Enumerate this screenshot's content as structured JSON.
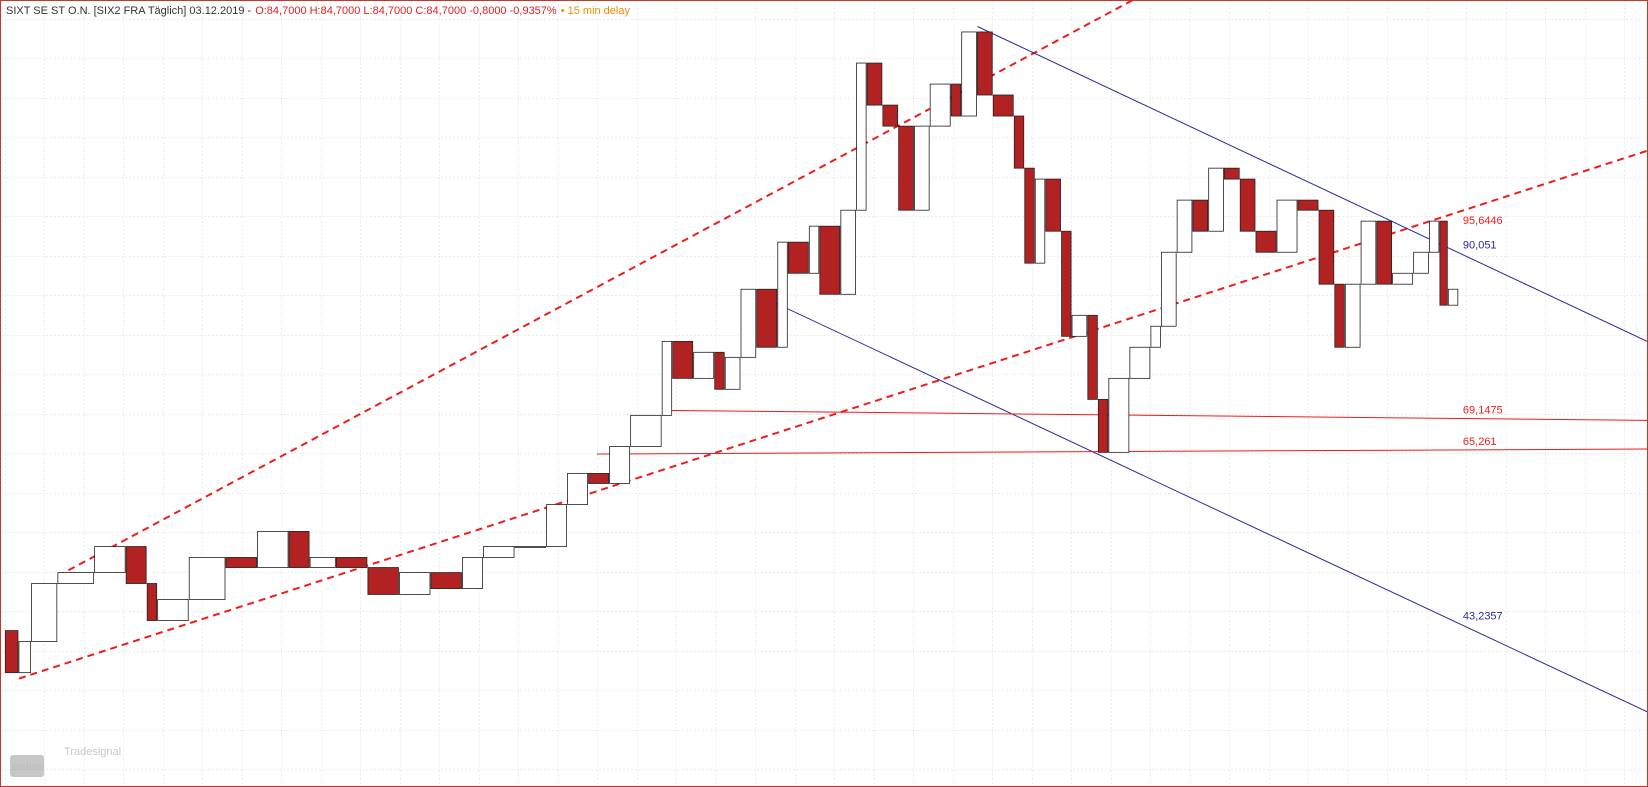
{
  "chart_data": {
    "type": "candlestick",
    "header": [
      {
        "text": "SIXT SE ST O.N. [SIX2 FRA Täglich] 03.12.2019 -",
        "color": "#333333"
      },
      {
        "text": "O:84,7000 H:84,7000 L:84,7000 C:84,7000 -0,8000 -0,9357%",
        "color": "#e0201e"
      },
      {
        "text": "• 15 min delay",
        "color": "#f08c00"
      }
    ],
    "x": [
      0,
      2.6,
      5,
      10,
      17,
      23,
      27,
      29,
      35,
      42,
      48,
      54,
      58,
      63,
      69,
      75,
      81,
      87,
      91,
      97,
      103,
      107,
      111,
      115,
      119,
      125,
      127,
      131,
      135,
      137,
      140,
      143,
      147,
      149,
      153,
      155,
      159,
      162,
      164,
      167,
      170,
      173,
      176,
      180,
      182,
      185,
      188,
      192,
      194,
      196,
      198,
      201,
      203,
      206,
      208,
      210,
      214,
      218,
      220,
      223,
      226,
      229,
      232,
      235,
      238,
      242,
      246,
      250,
      253,
      255,
      258,
      261,
      264,
      268,
      271,
      273,
      274.6,
      276.6
    ],
    "values": [
      43.8,
      38.8,
      42.5,
      49.4,
      50.7,
      53.8,
      49.4,
      45.0,
      47.5,
      52.5,
      51.3,
      55.6,
      51.3,
      52.5,
      51.3,
      48.1,
      50.7,
      48.8,
      52.5,
      53.8,
      53.8,
      58.8,
      62.5,
      61.3,
      65.7,
      69.4,
      78.2,
      73.8,
      76.9,
      72.5,
      76.3,
      84.4,
      77.5,
      90.0,
      86.3,
      91.9,
      83.8,
      93.8,
      111.3,
      106.3,
      103.8,
      93.8,
      103.8,
      108.8,
      105.0,
      115.0,
      107.5,
      105.0,
      98.8,
      87.5,
      97.5,
      91.3,
      78.8,
      81.3,
      71.3,
      65.0,
      73.8,
      77.5,
      80.0,
      88.8,
      95.0,
      91.3,
      98.8,
      97.5,
      91.3,
      88.8,
      95.0,
      93.8,
      85.0,
      77.5,
      85.0,
      92.5,
      85.0,
      86.3,
      88.8,
      92.5,
      82.5,
      84.4
    ],
    "up_color": "#ffffff",
    "down_color": "#b22222",
    "xlim": [
      0,
      312.6
    ],
    "ylim": [
      25.2,
      118.8
    ],
    "grid": true,
    "trendlines": [
      {
        "x": [
          10,
          214.6
        ],
        "y": [
          50.3,
          118.8
        ],
        "color": "#ee1c1c",
        "dashed": true
      },
      {
        "x": [
          2.6,
          312.6
        ],
        "y": [
          38.1,
          100.9
        ],
        "color": "#ee1c1c",
        "dashed": true,
        "label": "95,6446"
      },
      {
        "x": [
          185,
          312.6
        ],
        "y": [
          115.65,
          78.15
        ],
        "color": "#2a2a9a",
        "dashed": false,
        "label": "90,051"
      },
      {
        "x": [
          143,
          312.6
        ],
        "y": [
          83.8,
          34.1
        ],
        "color": "#2a2a9a",
        "dashed": false,
        "label": "43,2357"
      },
      {
        "x": [
          125,
          312.6
        ],
        "y": [
          70.0,
          68.8
        ],
        "color": "#ee1c1c",
        "dashed": false,
        "label": "69,1475"
      },
      {
        "x": [
          112.6,
          312.6
        ],
        "y": [
          64.8,
          65.4
        ],
        "color": "#ee1c1c",
        "dashed": false,
        "label": "65,261"
      }
    ],
    "watermark": {
      "brand": "Tradesignal",
      "name": "online"
    }
  }
}
